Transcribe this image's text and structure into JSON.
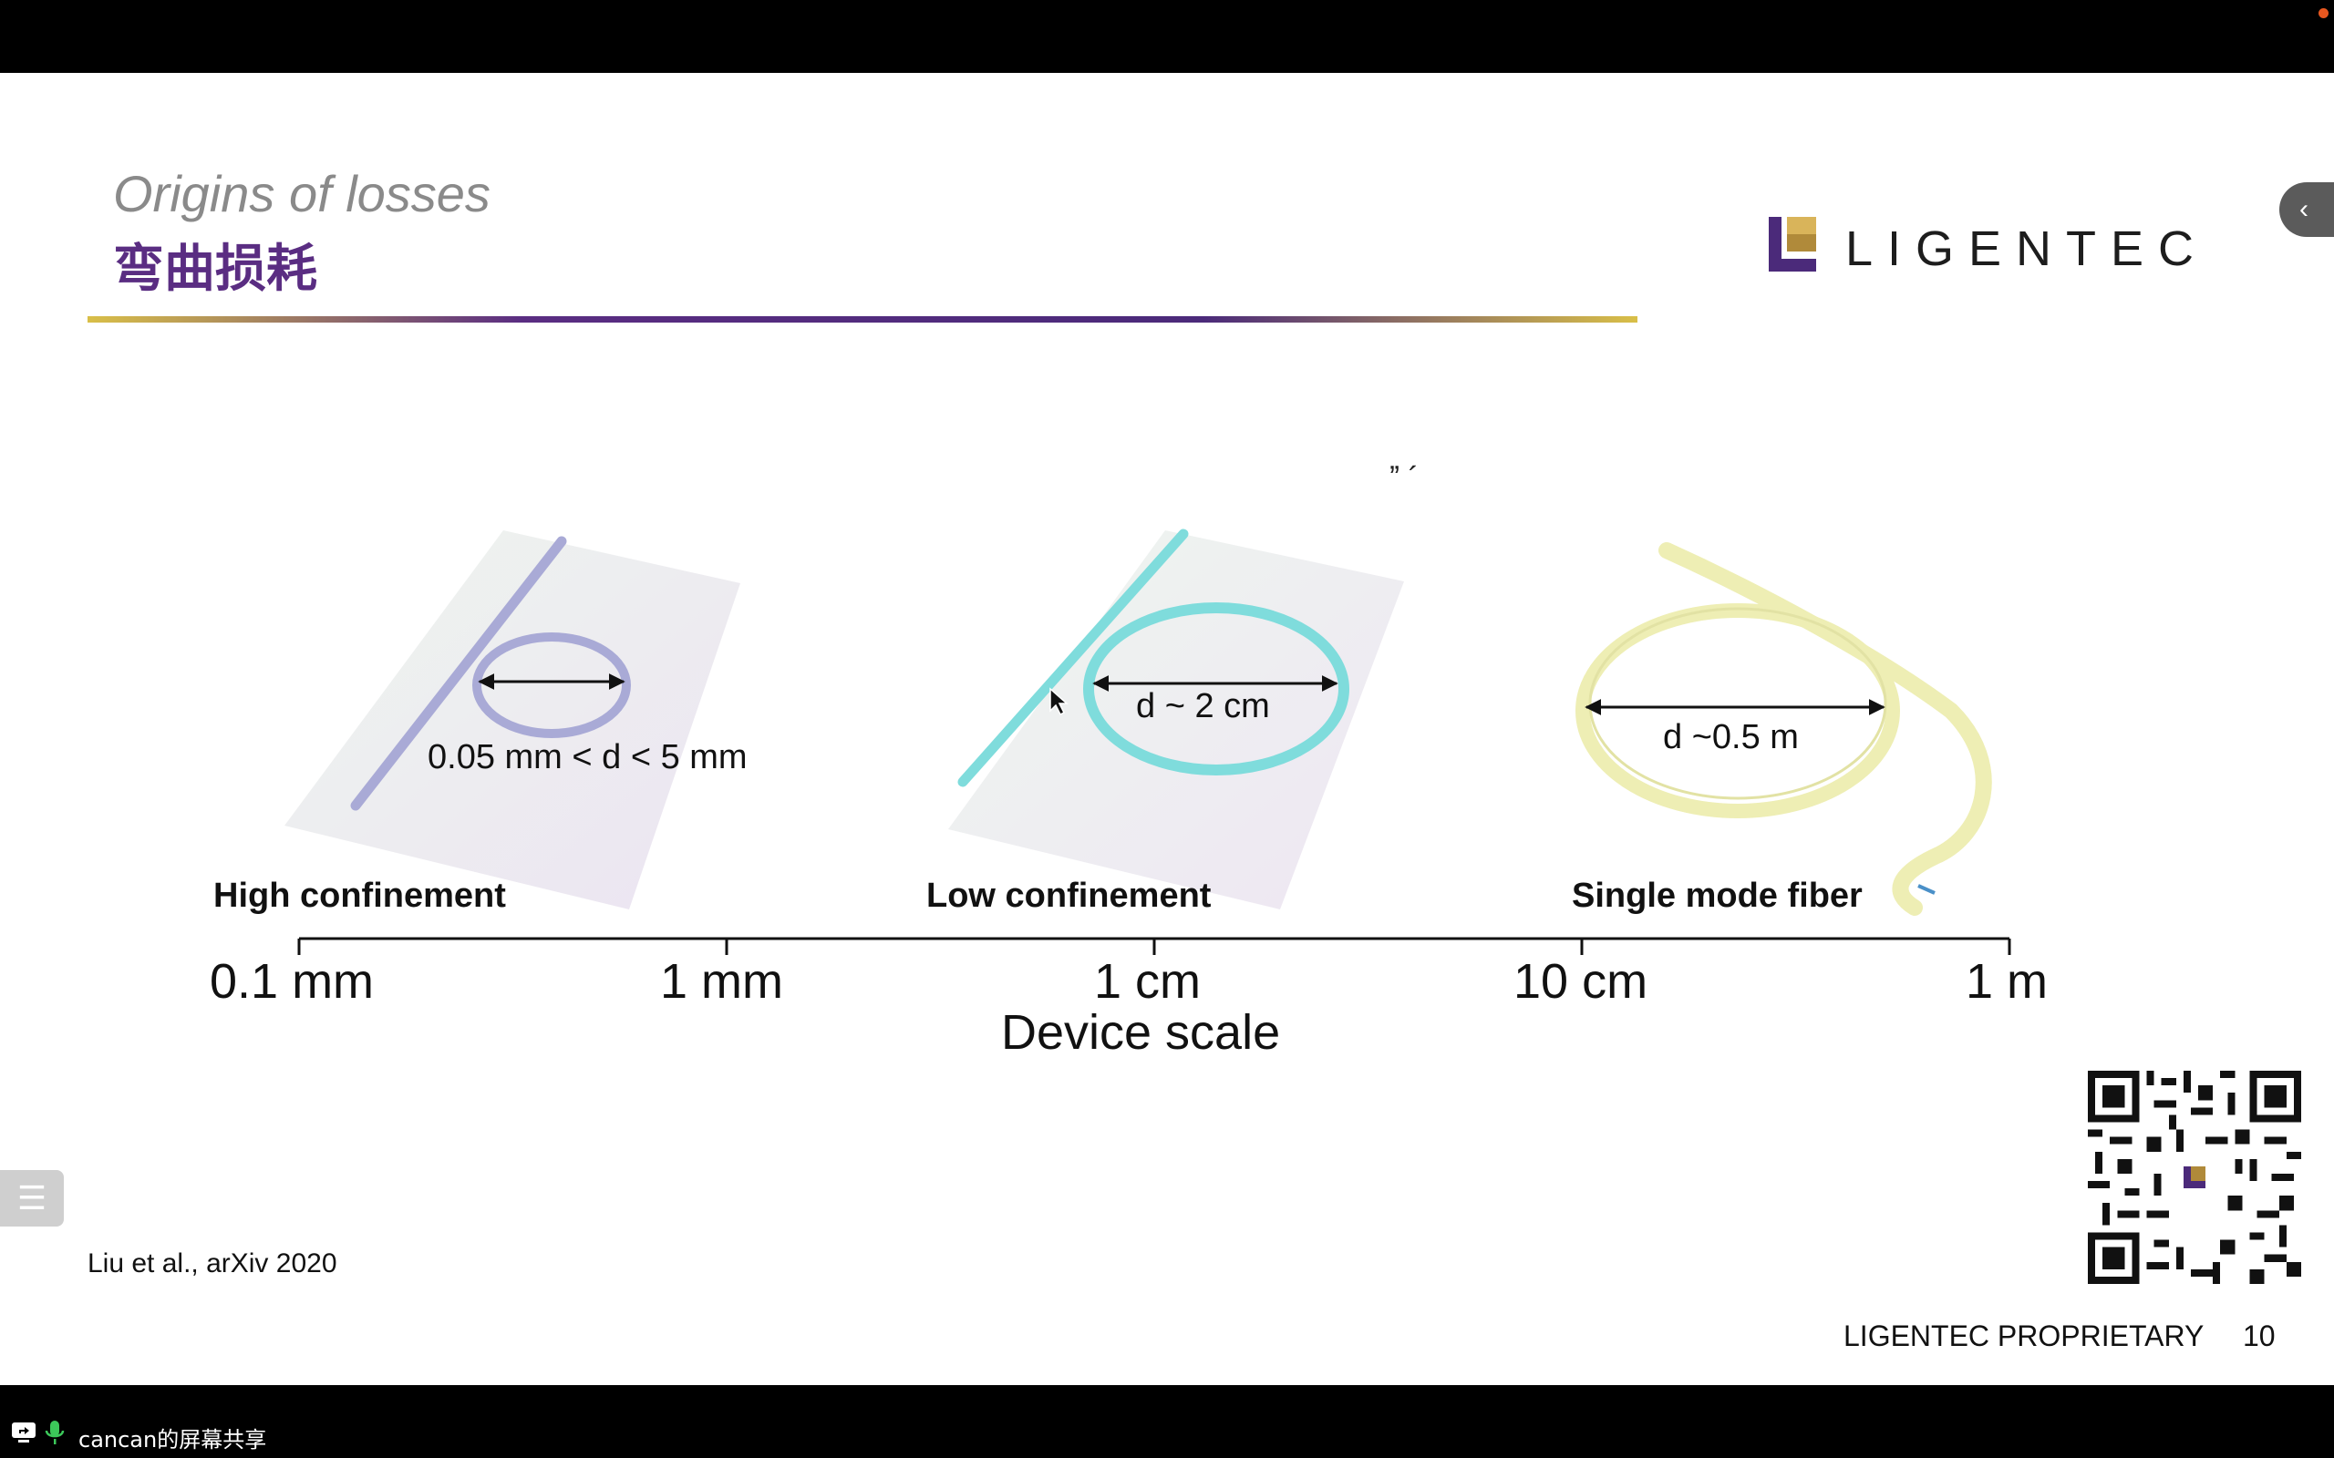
{
  "slide": {
    "title_en": "Origins of losses",
    "title_zh": "弯曲损耗",
    "logo_text": "LIGENTEC",
    "citation": "Liu et al., arXiv 2020",
    "footer_label": "LIGENTEC PROPRIETARY",
    "page_number": "10",
    "annotation_marks": "ˮ  ´"
  },
  "figure": {
    "categories": [
      {
        "name": "High confinement",
        "dimension": "0.05 mm < d < 5 mm",
        "color": "#a9aad6"
      },
      {
        "name": "Low confinement",
        "dimension": "d ~ 2 cm",
        "color": "#7fdcdc"
      },
      {
        "name": "Single mode fiber",
        "dimension": "d ~0.5 m",
        "color": "#eeeeb4"
      }
    ],
    "axis": {
      "title": "Device scale",
      "ticks": [
        "0.1 mm",
        "1 mm",
        "1 cm",
        "10 cm",
        "1 m"
      ]
    }
  },
  "viewer": {
    "side_tab_icon": "chevron-left-icon",
    "menu_icon": "list-icon"
  },
  "taskbar": {
    "share_label": "cancan的屏幕共享",
    "share_icon": "screen-share-icon",
    "mic_icon": "microphone-icon",
    "recording_color": "#e8571f"
  }
}
